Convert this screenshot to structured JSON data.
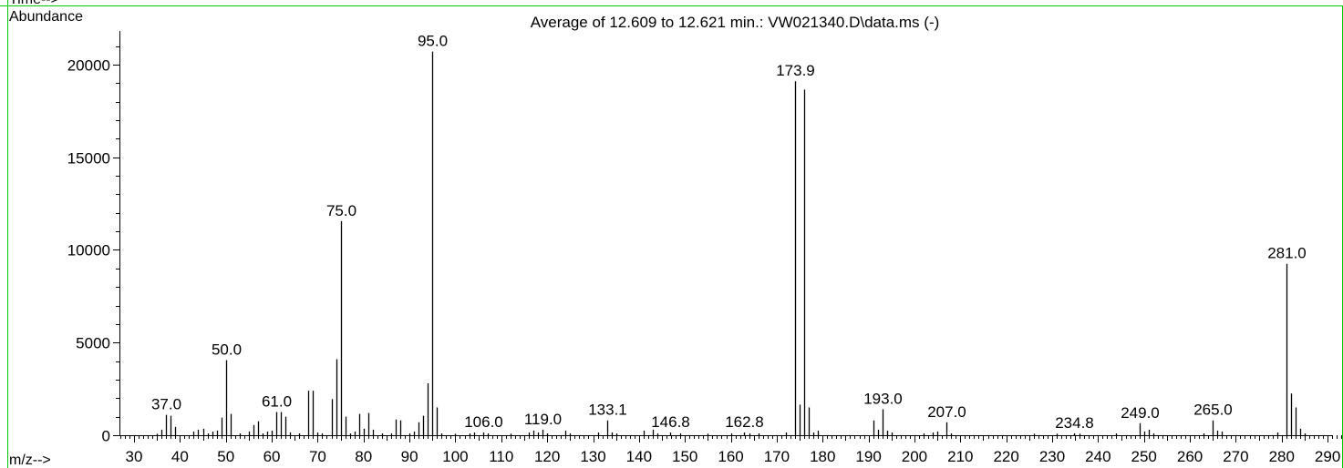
{
  "header": {
    "time_label": "Time-->"
  },
  "chart_data": {
    "type": "bar",
    "title": "Average of 12.609 to 12.621 min.: VW021340.D\\data.ms (-)",
    "ylabel": "Abundance",
    "xlabel": "m/z-->",
    "xlim": [
      25,
      296
    ],
    "ylim": [
      0,
      21600
    ],
    "xticks": [
      30,
      40,
      50,
      60,
      70,
      80,
      90,
      100,
      110,
      120,
      130,
      140,
      150,
      160,
      170,
      180,
      190,
      200,
      210,
      220,
      230,
      240,
      250,
      260,
      270,
      280,
      290
    ],
    "yticks": [
      0,
      5000,
      10000,
      15000,
      20000
    ],
    "grid": false,
    "colors": {
      "axis": "#000000",
      "frame": "#00cc00",
      "bars": "#000000"
    },
    "peaks": [
      {
        "mz": 35.0,
        "abundance": 80
      },
      {
        "mz": 36.0,
        "abundance": 300
      },
      {
        "mz": 37.0,
        "abundance": 1100,
        "label": "37.0"
      },
      {
        "mz": 38.0,
        "abundance": 1050
      },
      {
        "mz": 39.0,
        "abundance": 450
      },
      {
        "mz": 43.0,
        "abundance": 200
      },
      {
        "mz": 44.0,
        "abundance": 300
      },
      {
        "mz": 45.0,
        "abundance": 350
      },
      {
        "mz": 46.0,
        "abundance": 100
      },
      {
        "mz": 47.0,
        "abundance": 200
      },
      {
        "mz": 48.0,
        "abundance": 250
      },
      {
        "mz": 49.0,
        "abundance": 950
      },
      {
        "mz": 50.0,
        "abundance": 4050,
        "label": "50.0"
      },
      {
        "mz": 51.0,
        "abundance": 1150
      },
      {
        "mz": 53.0,
        "abundance": 100
      },
      {
        "mz": 55.0,
        "abundance": 200
      },
      {
        "mz": 56.0,
        "abundance": 550
      },
      {
        "mz": 57.0,
        "abundance": 750
      },
      {
        "mz": 58.0,
        "abundance": 100
      },
      {
        "mz": 59.0,
        "abundance": 200
      },
      {
        "mz": 60.0,
        "abundance": 250
      },
      {
        "mz": 61.0,
        "abundance": 1250,
        "label": "61.0"
      },
      {
        "mz": 62.0,
        "abundance": 1250
      },
      {
        "mz": 63.0,
        "abundance": 1000
      },
      {
        "mz": 64.0,
        "abundance": 150
      },
      {
        "mz": 66.0,
        "abundance": 100
      },
      {
        "mz": 68.0,
        "abundance": 2400
      },
      {
        "mz": 69.0,
        "abundance": 2400
      },
      {
        "mz": 70.0,
        "abundance": 150
      },
      {
        "mz": 71.0,
        "abundance": 100
      },
      {
        "mz": 73.0,
        "abundance": 1950
      },
      {
        "mz": 74.0,
        "abundance": 4100
      },
      {
        "mz": 75.0,
        "abundance": 11550,
        "label": "75.0"
      },
      {
        "mz": 76.0,
        "abundance": 1000
      },
      {
        "mz": 77.0,
        "abundance": 100
      },
      {
        "mz": 78.0,
        "abundance": 200
      },
      {
        "mz": 79.0,
        "abundance": 1150
      },
      {
        "mz": 80.0,
        "abundance": 350
      },
      {
        "mz": 81.0,
        "abundance": 1200
      },
      {
        "mz": 82.0,
        "abundance": 300
      },
      {
        "mz": 84.0,
        "abundance": 100
      },
      {
        "mz": 86.0,
        "abundance": 100
      },
      {
        "mz": 87.0,
        "abundance": 850
      },
      {
        "mz": 88.0,
        "abundance": 800
      },
      {
        "mz": 90.0,
        "abundance": 100
      },
      {
        "mz": 91.0,
        "abundance": 200
      },
      {
        "mz": 92.0,
        "abundance": 700
      },
      {
        "mz": 93.0,
        "abundance": 1050
      },
      {
        "mz": 94.0,
        "abundance": 2800
      },
      {
        "mz": 95.0,
        "abundance": 20700,
        "label": "95.0"
      },
      {
        "mz": 96.0,
        "abundance": 1500
      },
      {
        "mz": 97.0,
        "abundance": 100
      },
      {
        "mz": 100.0,
        "abundance": 80
      },
      {
        "mz": 103.0,
        "abundance": 100
      },
      {
        "mz": 104.0,
        "abundance": 150
      },
      {
        "mz": 106.0,
        "abundance": 150,
        "label": "106.0"
      },
      {
        "mz": 107.0,
        "abundance": 100
      },
      {
        "mz": 112.0,
        "abundance": 80
      },
      {
        "mz": 116.0,
        "abundance": 150
      },
      {
        "mz": 117.0,
        "abundance": 250
      },
      {
        "mz": 118.0,
        "abundance": 150
      },
      {
        "mz": 119.0,
        "abundance": 300,
        "label": "119.0"
      },
      {
        "mz": 120.0,
        "abundance": 100
      },
      {
        "mz": 124.0,
        "abundance": 250
      },
      {
        "mz": 125.0,
        "abundance": 100
      },
      {
        "mz": 131.0,
        "abundance": 150
      },
      {
        "mz": 133.1,
        "abundance": 800,
        "label": "133.1"
      },
      {
        "mz": 134.0,
        "abundance": 150
      },
      {
        "mz": 135.0,
        "abundance": 100
      },
      {
        "mz": 141.0,
        "abundance": 250
      },
      {
        "mz": 143.0,
        "abundance": 300
      },
      {
        "mz": 144.0,
        "abundance": 100
      },
      {
        "mz": 146.8,
        "abundance": 150,
        "label": "146.8"
      },
      {
        "mz": 149.0,
        "abundance": 100
      },
      {
        "mz": 155.0,
        "abundance": 80
      },
      {
        "mz": 160.0,
        "abundance": 100
      },
      {
        "mz": 162.8,
        "abundance": 150,
        "label": "162.8"
      },
      {
        "mz": 164.0,
        "abundance": 100
      },
      {
        "mz": 166.0,
        "abundance": 100
      },
      {
        "mz": 172.0,
        "abundance": 150
      },
      {
        "mz": 173.9,
        "abundance": 19100,
        "label": "173.9"
      },
      {
        "mz": 175.0,
        "abundance": 1650
      },
      {
        "mz": 176.0,
        "abundance": 18650
      },
      {
        "mz": 177.0,
        "abundance": 1500
      },
      {
        "mz": 178.0,
        "abundance": 150
      },
      {
        "mz": 179.0,
        "abundance": 250
      },
      {
        "mz": 191.0,
        "abundance": 800
      },
      {
        "mz": 192.0,
        "abundance": 300
      },
      {
        "mz": 193.0,
        "abundance": 1400,
        "label": "193.0"
      },
      {
        "mz": 194.0,
        "abundance": 250
      },
      {
        "mz": 195.0,
        "abundance": 150
      },
      {
        "mz": 202.0,
        "abundance": 100
      },
      {
        "mz": 204.0,
        "abundance": 150
      },
      {
        "mz": 205.0,
        "abundance": 200
      },
      {
        "mz": 207.0,
        "abundance": 700,
        "label": "207.0"
      },
      {
        "mz": 208.0,
        "abundance": 100
      },
      {
        "mz": 226.0,
        "abundance": 80
      },
      {
        "mz": 231.0,
        "abundance": 80
      },
      {
        "mz": 234.8,
        "abundance": 100,
        "label": "234.8"
      },
      {
        "mz": 236.0,
        "abundance": 80
      },
      {
        "mz": 244.0,
        "abundance": 100
      },
      {
        "mz": 249.0,
        "abundance": 650,
        "label": "249.0"
      },
      {
        "mz": 250.0,
        "abundance": 200
      },
      {
        "mz": 251.0,
        "abundance": 300
      },
      {
        "mz": 252.0,
        "abundance": 100
      },
      {
        "mz": 263.0,
        "abundance": 100
      },
      {
        "mz": 265.0,
        "abundance": 800,
        "label": "265.0"
      },
      {
        "mz": 266.0,
        "abundance": 250
      },
      {
        "mz": 267.0,
        "abundance": 200
      },
      {
        "mz": 279.0,
        "abundance": 150
      },
      {
        "mz": 281.0,
        "abundance": 9250,
        "label": "281.0"
      },
      {
        "mz": 282.0,
        "abundance": 2250
      },
      {
        "mz": 283.0,
        "abundance": 1500
      },
      {
        "mz": 284.0,
        "abundance": 350
      },
      {
        "mz": 285.0,
        "abundance": 100
      }
    ]
  }
}
